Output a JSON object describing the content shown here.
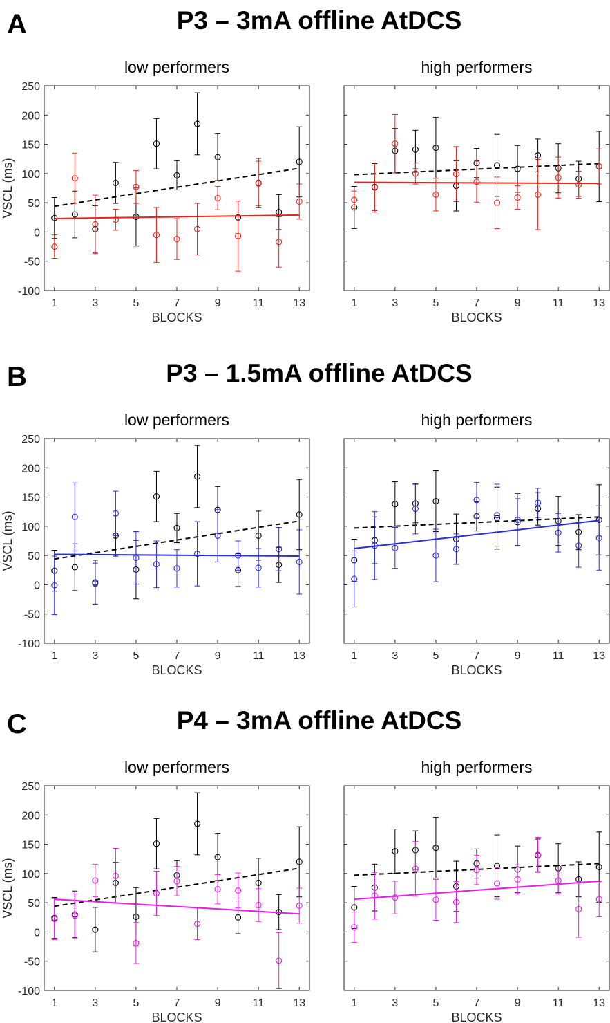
{
  "chart_data": [
    {
      "type": "scatter",
      "panel_letter": "A",
      "title": "P3 – 3mA offline AtDCS",
      "ylabel": "VSCL (ms)",
      "xlabel": "BLOCKS",
      "ylim": [
        -100,
        250
      ],
      "yticks": [
        -100,
        -50,
        0,
        50,
        100,
        150,
        200,
        250
      ],
      "xlim": [
        0.5,
        13.5
      ],
      "xticks": [
        1,
        3,
        5,
        7,
        9,
        11,
        13
      ],
      "grid": false,
      "subplots": [
        {
          "subtitle": "low performers",
          "show_ytick_labels": true,
          "series": [
            {
              "color": "#000000",
              "style": "dashed",
              "x": [
                1,
                2,
                3,
                4,
                5,
                6,
                7,
                8,
                9,
                10,
                11,
                12,
                13
              ],
              "y": [
                24,
                30,
                5,
                84,
                26,
                151,
                97,
                185,
                128,
                25,
                84,
                34,
                120
              ],
              "err": [
                35,
                40,
                40,
                35,
                50,
                43,
                25,
                53,
                40,
                28,
                42,
                30,
                60
              ],
              "fit": [
                44,
                109
              ]
            },
            {
              "color": "#e8231b",
              "style": "solid",
              "x": [
                1,
                2,
                3,
                4,
                5,
                6,
                7,
                8,
                9,
                10,
                11,
                12,
                13
              ],
              "y": [
                -25,
                92,
                13,
                21,
                77,
                -5,
                -12,
                5,
                58,
                -7,
                83,
                -17,
                52
              ],
              "err": [
                20,
                43,
                50,
                18,
                28,
                47,
                35,
                44,
                20,
                60,
                38,
                43,
                30
              ],
              "fit": [
                23,
                29
              ]
            }
          ]
        },
        {
          "subtitle": "high performers",
          "show_ytick_labels": false,
          "series": [
            {
              "color": "#000000",
              "style": "dashed",
              "x": [
                1,
                2,
                3,
                4,
                5,
                6,
                7,
                8,
                9,
                10,
                11,
                12,
                13
              ],
              "y": [
                42,
                77,
                139,
                141,
                144,
                79,
                118,
                114,
                108,
                131,
                109,
                91,
                112
              ],
              "err": [
                36,
                40,
                38,
                33,
                52,
                43,
                25,
                53,
                40,
                28,
                42,
                30,
                60
              ],
              "fit": [
                98,
                117
              ]
            },
            {
              "color": "#e8231b",
              "style": "solid",
              "x": [
                1,
                2,
                3,
                4,
                5,
                6,
                7,
                8,
                9,
                10,
                11,
                12,
                13
              ],
              "y": [
                55,
                76,
                151,
                100,
                64,
                99,
                86,
                50,
                59,
                64,
                93,
                81,
                112
              ],
              "err": [
                15,
                42,
                50,
                18,
                28,
                47,
                35,
                44,
                20,
                60,
                35,
                23,
                30
              ],
              "fit": [
                85,
                83
              ]
            }
          ]
        }
      ]
    },
    {
      "type": "scatter",
      "panel_letter": "B",
      "title": "P3 – 1.5mA offline AtDCS",
      "ylabel": "VSCL (ms)",
      "xlabel": "BLOCKS",
      "ylim": [
        -100,
        250
      ],
      "yticks": [
        -100,
        -50,
        0,
        50,
        100,
        150,
        200,
        250
      ],
      "xlim": [
        0.5,
        13.5
      ],
      "xticks": [
        1,
        3,
        5,
        7,
        9,
        11,
        13
      ],
      "grid": false,
      "subplots": [
        {
          "subtitle": "low performers",
          "show_ytick_labels": true,
          "series": [
            {
              "color": "#000000",
              "style": "dashed",
              "x": [
                1,
                2,
                3,
                4,
                5,
                6,
                7,
                8,
                9,
                10,
                11,
                12,
                13
              ],
              "y": [
                24,
                30,
                4,
                84,
                26,
                151,
                97,
                185,
                128,
                25,
                84,
                34,
                120
              ],
              "err": [
                35,
                40,
                38,
                35,
                50,
                43,
                25,
                53,
                40,
                28,
                42,
                30,
                60
              ],
              "fit": [
                44,
                109
              ]
            },
            {
              "color": "#2b2bd9",
              "style": "solid",
              "x": [
                1,
                2,
                3,
                4,
                5,
                6,
                7,
                8,
                9,
                10,
                11,
                12,
                13
              ],
              "y": [
                -1,
                116,
                2,
                122,
                46,
                35,
                28,
                53,
                84,
                50,
                29,
                61,
                39
              ],
              "err": [
                50,
                58,
                35,
                38,
                45,
                40,
                32,
                55,
                45,
                25,
                33,
                37,
                55
              ],
              "fit": [
                52,
                49
              ]
            }
          ]
        },
        {
          "subtitle": "high performers",
          "show_ytick_labels": false,
          "series": [
            {
              "color": "#000000",
              "style": "dashed",
              "x": [
                1,
                2,
                3,
                4,
                5,
                6,
                7,
                8,
                9,
                10,
                11,
                12,
                13
              ],
              "y": [
                42,
                76,
                138,
                139,
                143,
                78,
                117,
                114,
                107,
                130,
                109,
                90,
                111
              ],
              "err": [
                36,
                40,
                38,
                33,
                52,
                43,
                25,
                53,
                40,
                28,
                42,
                30,
                60
              ],
              "fit": [
                97,
                116
              ]
            },
            {
              "color": "#2b2bd9",
              "style": "solid",
              "x": [
                1,
                2,
                3,
                4,
                5,
                6,
                7,
                8,
                9,
                10,
                11,
                12,
                13
              ],
              "y": [
                10,
                67,
                63,
                130,
                50,
                61,
                145,
                119,
                111,
                140,
                89,
                67,
                80
              ],
              "err": [
                48,
                58,
                35,
                43,
                45,
                26,
                30,
                53,
                45,
                25,
                33,
                37,
                55
              ],
              "fit": [
                62,
                110
              ]
            }
          ]
        }
      ]
    },
    {
      "type": "scatter",
      "panel_letter": "C",
      "title": "P4 – 3mA offline AtDCS",
      "ylabel": "VSCL (ms)",
      "xlabel": "BLOCKS",
      "ylim": [
        -100,
        250
      ],
      "yticks": [
        -100,
        -50,
        0,
        50,
        100,
        150,
        200,
        250
      ],
      "xlim": [
        0.5,
        13.5
      ],
      "xticks": [
        1,
        3,
        5,
        7,
        9,
        11,
        13
      ],
      "grid": false,
      "subplots": [
        {
          "subtitle": "low performers",
          "show_ytick_labels": true,
          "series": [
            {
              "color": "#000000",
              "style": "dashed",
              "x": [
                1,
                2,
                3,
                4,
                5,
                6,
                7,
                8,
                9,
                10,
                11,
                12,
                13
              ],
              "y": [
                24,
                30,
                4,
                84,
                26,
                151,
                97,
                185,
                128,
                25,
                84,
                34,
                120
              ],
              "err": [
                35,
                40,
                38,
                35,
                50,
                43,
                25,
                53,
                40,
                28,
                42,
                30,
                60
              ],
              "fit": [
                44,
                109
              ]
            },
            {
              "color": "#e81be8",
              "style": "solid",
              "x": [
                1,
                2,
                3,
                4,
                5,
                6,
                7,
                8,
                9,
                10,
                11,
                12,
                13
              ],
              "y": [
                22,
                28,
                88,
                96,
                -19,
                66,
                87,
                14,
                73,
                71,
                46,
                -49,
                45
              ],
              "err": [
                35,
                37,
                28,
                47,
                35,
                38,
                25,
                27,
                25,
                30,
                28,
                48,
                30
              ],
              "fit": [
                56,
                31
              ]
            }
          ]
        },
        {
          "subtitle": "high performers",
          "show_ytick_labels": false,
          "series": [
            {
              "color": "#000000",
              "style": "dashed",
              "x": [
                1,
                2,
                3,
                4,
                5,
                6,
                7,
                8,
                9,
                10,
                11,
                12,
                13
              ],
              "y": [
                42,
                76,
                138,
                140,
                144,
                78,
                117,
                113,
                107,
                131,
                109,
                90,
                111
              ],
              "err": [
                36,
                40,
                38,
                33,
                52,
                43,
                25,
                53,
                40,
                28,
                42,
                30,
                60
              ],
              "fit": [
                97,
                117
              ]
            },
            {
              "color": "#e81be8",
              "style": "solid",
              "x": [
                1,
                2,
                3,
                4,
                5,
                6,
                7,
                8,
                9,
                10,
                11,
                12,
                13
              ],
              "y": [
                8,
                62,
                59,
                108,
                55,
                51,
                106,
                83,
                90,
                132,
                88,
                39,
                56
              ],
              "err": [
                26,
                40,
                28,
                47,
                35,
                35,
                25,
                27,
                25,
                30,
                23,
                48,
                30
              ],
              "fit": [
                56,
                87
              ]
            }
          ]
        }
      ]
    }
  ]
}
